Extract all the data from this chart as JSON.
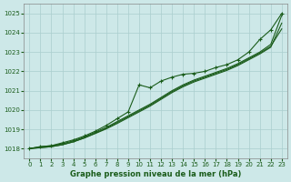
{
  "title": "Graphe pression niveau de la mer (hPa)",
  "background_color": "#cde8e8",
  "grid_color": "#aacece",
  "line_color": "#1a5c1a",
  "ylim": [
    1017.5,
    1025.5
  ],
  "xlim": [
    -0.5,
    23.5
  ],
  "yticks": [
    1018,
    1019,
    1020,
    1021,
    1022,
    1023,
    1024,
    1025
  ],
  "xticks": [
    0,
    1,
    2,
    3,
    4,
    5,
    6,
    7,
    8,
    9,
    10,
    11,
    12,
    13,
    14,
    15,
    16,
    17,
    18,
    19,
    20,
    21,
    22,
    23
  ],
  "series_main": [
    1018.0,
    1018.1,
    1018.15,
    1018.25,
    1018.4,
    1018.6,
    1018.85,
    1019.1,
    1019.4,
    1019.7,
    1020.0,
    1020.3,
    1020.65,
    1021.0,
    1021.3,
    1021.55,
    1021.75,
    1021.95,
    1022.15,
    1022.4,
    1022.7,
    1023.0,
    1023.4,
    1024.9
  ],
  "series_upper": [
    1018.0,
    1018.1,
    1018.15,
    1018.3,
    1018.45,
    1018.65,
    1018.9,
    1019.2,
    1019.55,
    1019.9,
    1021.3,
    1021.15,
    1021.5,
    1021.7,
    1021.85,
    1021.9,
    1022.0,
    1022.2,
    1022.35,
    1022.6,
    1023.0,
    1023.65,
    1024.15,
    1025.0
  ],
  "series_low1": [
    1018.0,
    1018.05,
    1018.1,
    1018.2,
    1018.35,
    1018.55,
    1018.8,
    1019.05,
    1019.35,
    1019.65,
    1019.95,
    1020.25,
    1020.6,
    1020.95,
    1021.25,
    1021.5,
    1021.7,
    1021.9,
    1022.1,
    1022.35,
    1022.65,
    1022.95,
    1023.3,
    1024.2
  ],
  "series_low2": [
    1018.0,
    1018.05,
    1018.1,
    1018.2,
    1018.35,
    1018.55,
    1018.78,
    1019.02,
    1019.3,
    1019.6,
    1019.9,
    1020.2,
    1020.55,
    1020.9,
    1021.2,
    1021.45,
    1021.65,
    1021.85,
    1022.05,
    1022.3,
    1022.6,
    1022.9,
    1023.25,
    1024.5
  ]
}
